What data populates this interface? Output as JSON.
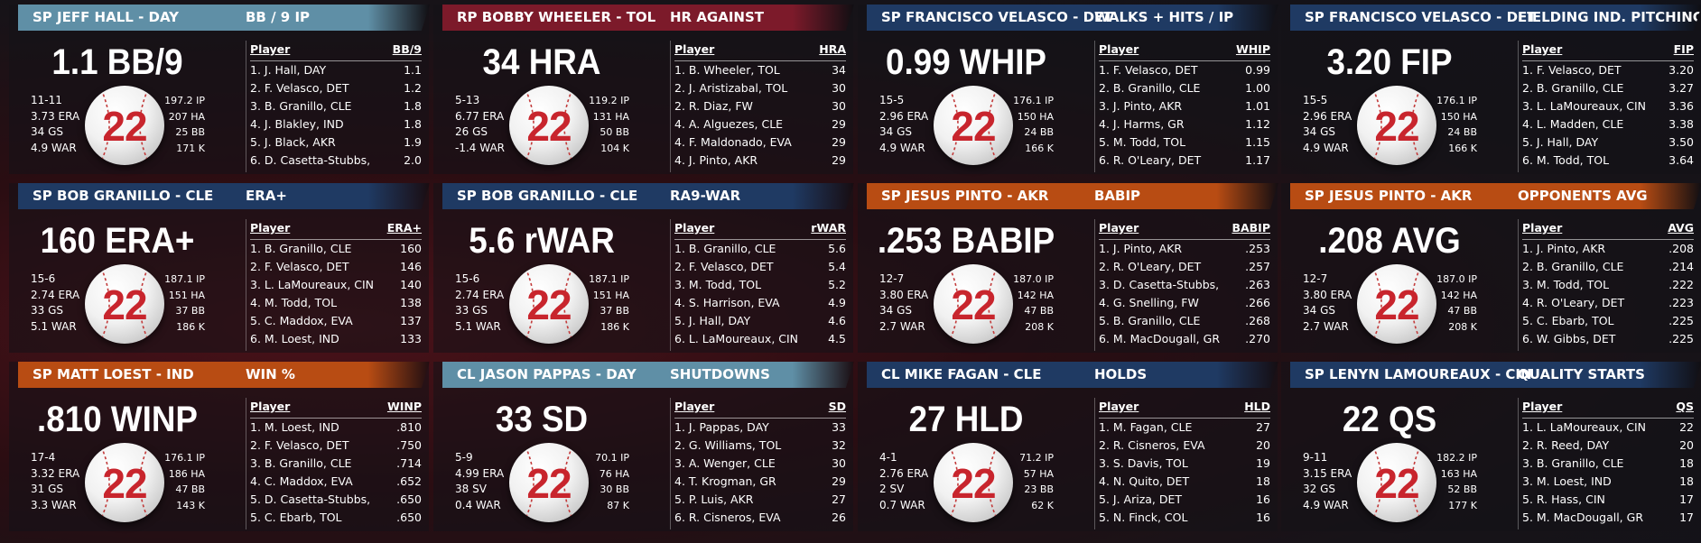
{
  "ball_number": "22",
  "colors": {
    "teal": "#5f8fa6",
    "red": "#7c1a2a",
    "navy": "#1f3a63",
    "orange": "#b84c13"
  },
  "cards": [
    {
      "header_color": "teal",
      "title": "SP JEFF HALL - DAY",
      "category": "BB / 9 IP",
      "big": "1.1 BB/9",
      "rec": [
        "11-11",
        "3.73 ERA",
        "34 GS",
        "4.9 WAR"
      ],
      "aux": [
        "197.2 IP",
        "207 HA",
        "25 BB",
        "171 K"
      ],
      "col_player": "Player",
      "col_stat": "BB/9",
      "rows": [
        [
          "1. J. Hall, DAY",
          "1.1"
        ],
        [
          "2. F. Velasco, DET",
          "1.2"
        ],
        [
          "3. B. Granillo, CLE",
          "1.8"
        ],
        [
          "4. J. Blakley, IND",
          "1.8"
        ],
        [
          "5. J. Black, AKR",
          "1.9"
        ],
        [
          "6. D. Casetta-Stubbs,",
          "2.0"
        ]
      ]
    },
    {
      "header_color": "red",
      "title": "RP BOBBY WHEELER - TOL",
      "category": "HR AGAINST",
      "big": "34 HRA",
      "rec": [
        "5-13",
        "6.77 ERA",
        "26 GS",
        "-1.4 WAR"
      ],
      "aux": [
        "119.2 IP",
        "131 HA",
        "50 BB",
        "104 K"
      ],
      "col_player": "Player",
      "col_stat": "HRA",
      "rows": [
        [
          "1. B. Wheeler, TOL",
          "34"
        ],
        [
          "2. J. Aristizabal, TOL",
          "30"
        ],
        [
          "2. R. Diaz, FW",
          "30"
        ],
        [
          "4. A. Alguezes, CLE",
          "29"
        ],
        [
          "4. F. Maldonado, EVA",
          "29"
        ],
        [
          "4. J. Pinto, AKR",
          "29"
        ]
      ]
    },
    {
      "header_color": "navy",
      "title": "SP FRANCISCO VELASCO - DET",
      "category": "WALKS + HITS / IP",
      "big": "0.99 WHIP",
      "rec": [
        "15-5",
        "2.96 ERA",
        "34 GS",
        "4.9 WAR"
      ],
      "aux": [
        "176.1 IP",
        "150 HA",
        "24 BB",
        "166 K"
      ],
      "col_player": "Player",
      "col_stat": "WHIP",
      "rows": [
        [
          "1. F. Velasco, DET",
          "0.99"
        ],
        [
          "2. B. Granillo, CLE",
          "1.00"
        ],
        [
          "3. J. Pinto, AKR",
          "1.01"
        ],
        [
          "4. J. Harms, GR",
          "1.12"
        ],
        [
          "5. M. Todd, TOL",
          "1.15"
        ],
        [
          "6. R. O'Leary, DET",
          "1.17"
        ]
      ]
    },
    {
      "header_color": "navy",
      "title": "SP FRANCISCO VELASCO - DET",
      "category": "FIELDING IND. PITCHING",
      "big": "3.20 FIP",
      "rec": [
        "15-5",
        "2.96 ERA",
        "34 GS",
        "4.9 WAR"
      ],
      "aux": [
        "176.1 IP",
        "150 HA",
        "24 BB",
        "166 K"
      ],
      "col_player": "Player",
      "col_stat": "FIP",
      "rows": [
        [
          "1. F. Velasco, DET",
          "3.20"
        ],
        [
          "2. B. Granillo, CLE",
          "3.27"
        ],
        [
          "3. L. LaMoureaux, CIN",
          "3.36"
        ],
        [
          "4. L. Madden, CLE",
          "3.38"
        ],
        [
          "5. J. Hall, DAY",
          "3.50"
        ],
        [
          "6. M. Todd, TOL",
          "3.64"
        ]
      ]
    },
    {
      "header_color": "navy",
      "title": "SP BOB GRANILLO - CLE",
      "category": "ERA+",
      "big": "160 ERA+",
      "rec": [
        "15-6",
        "2.74 ERA",
        "33 GS",
        "5.1 WAR"
      ],
      "aux": [
        "187.1 IP",
        "151 HA",
        "37 BB",
        "186 K"
      ],
      "col_player": "Player",
      "col_stat": "ERA+",
      "rows": [
        [
          "1. B. Granillo, CLE",
          "160"
        ],
        [
          "2. F. Velasco, DET",
          "146"
        ],
        [
          "3. L. LaMoureaux, CIN",
          "140"
        ],
        [
          "4. M. Todd, TOL",
          "138"
        ],
        [
          "5. C. Maddox, EVA",
          "137"
        ],
        [
          "6. M. Loest, IND",
          "133"
        ]
      ]
    },
    {
      "header_color": "navy",
      "title": "SP BOB GRANILLO - CLE",
      "category": "RA9-WAR",
      "big": "5.6 rWAR",
      "rec": [
        "15-6",
        "2.74 ERA",
        "33 GS",
        "5.1 WAR"
      ],
      "aux": [
        "187.1 IP",
        "151 HA",
        "37 BB",
        "186 K"
      ],
      "col_player": "Player",
      "col_stat": "rWAR",
      "rows": [
        [
          "1. B. Granillo, CLE",
          "5.6"
        ],
        [
          "2. F. Velasco, DET",
          "5.4"
        ],
        [
          "3. M. Todd, TOL",
          "5.2"
        ],
        [
          "4. S. Harrison, EVA",
          "4.9"
        ],
        [
          "5. J. Hall, DAY",
          "4.6"
        ],
        [
          "6. L. LaMoureaux, CIN",
          "4.5"
        ]
      ]
    },
    {
      "header_color": "orange",
      "title": "SP JESUS PINTO - AKR",
      "category": "BABIP",
      "big": ".253 BABIP",
      "rec": [
        "12-7",
        "3.80 ERA",
        "34 GS",
        "2.7 WAR"
      ],
      "aux": [
        "187.0 IP",
        "142 HA",
        "47 BB",
        "208 K"
      ],
      "col_player": "Player",
      "col_stat": "BABIP",
      "rows": [
        [
          "1. J. Pinto, AKR",
          ".253"
        ],
        [
          "2. R. O'Leary, DET",
          ".257"
        ],
        [
          "3. D. Casetta-Stubbs,",
          ".263"
        ],
        [
          "4. G. Snelling, FW",
          ".266"
        ],
        [
          "5. B. Granillo, CLE",
          ".268"
        ],
        [
          "6. M. MacDougall, GR",
          ".270"
        ]
      ]
    },
    {
      "header_color": "orange",
      "title": "SP JESUS PINTO - AKR",
      "category": "OPPONENTS AVG",
      "big": ".208 AVG",
      "rec": [
        "12-7",
        "3.80 ERA",
        "34 GS",
        "2.7 WAR"
      ],
      "aux": [
        "187.0 IP",
        "142 HA",
        "47 BB",
        "208 K"
      ],
      "col_player": "Player",
      "col_stat": "AVG",
      "rows": [
        [
          "1. J. Pinto, AKR",
          ".208"
        ],
        [
          "2. B. Granillo, CLE",
          ".214"
        ],
        [
          "3. M. Todd, TOL",
          ".222"
        ],
        [
          "4. R. O'Leary, DET",
          ".223"
        ],
        [
          "5. C. Ebarb, TOL",
          ".225"
        ],
        [
          "6. W. Gibbs, DET",
          ".225"
        ]
      ]
    },
    {
      "header_color": "orange",
      "title": "SP MATT LOEST - IND",
      "category": "WIN %",
      "big": ".810 WINP",
      "rec": [
        "17-4",
        "3.32 ERA",
        "31 GS",
        "3.3 WAR"
      ],
      "aux": [
        "176.1 IP",
        "186 HA",
        "47 BB",
        "143 K"
      ],
      "col_player": "Player",
      "col_stat": "WINP",
      "rows": [
        [
          "1. M. Loest, IND",
          ".810"
        ],
        [
          "2. F. Velasco, DET",
          ".750"
        ],
        [
          "3. B. Granillo, CLE",
          ".714"
        ],
        [
          "4. C. Maddox, EVA",
          ".652"
        ],
        [
          "5. D. Casetta-Stubbs,",
          ".650"
        ],
        [
          "5. C. Ebarb, TOL",
          ".650"
        ]
      ]
    },
    {
      "header_color": "teal",
      "title": "CL JASON PAPPAS - DAY",
      "category": "SHUTDOWNS",
      "big": "33 SD",
      "rec": [
        "5-9",
        "4.99 ERA",
        "38 SV",
        "0.4 WAR"
      ],
      "aux": [
        "70.1 IP",
        "76 HA",
        "30 BB",
        "87 K"
      ],
      "col_player": "Player",
      "col_stat": "SD",
      "rows": [
        [
          "1. J. Pappas, DAY",
          "33"
        ],
        [
          "2. G. Williams, TOL",
          "32"
        ],
        [
          "3. A. Wenger, CLE",
          "30"
        ],
        [
          "4. T. Krogman, GR",
          "29"
        ],
        [
          "5. P. Luis, AKR",
          "27"
        ],
        [
          "6. R. Cisneros, EVA",
          "26"
        ]
      ]
    },
    {
      "header_color": "navy",
      "title": "CL MIKE FAGAN - CLE",
      "category": "HOLDS",
      "big": "27 HLD",
      "rec": [
        "4-1",
        "2.76 ERA",
        "2 SV",
        "0.7 WAR"
      ],
      "aux": [
        "71.2 IP",
        "57 HA",
        "23 BB",
        "62 K"
      ],
      "col_player": "Player",
      "col_stat": "HLD",
      "rows": [
        [
          "1. M. Fagan, CLE",
          "27"
        ],
        [
          "2. R. Cisneros, EVA",
          "20"
        ],
        [
          "3. S. Davis, TOL",
          "19"
        ],
        [
          "4. N. Quito, DET",
          "18"
        ],
        [
          "5. J. Ariza, DET",
          "16"
        ],
        [
          "5. N. Finck, COL",
          "16"
        ]
      ]
    },
    {
      "header_color": "navy",
      "title": "SP LENYN LAMOUREAUX - CIN",
      "category": "QUALITY STARTS",
      "big": "22 QS",
      "rec": [
        "9-11",
        "3.15 ERA",
        "32 GS",
        "4.9 WAR"
      ],
      "aux": [
        "182.2 IP",
        "163 HA",
        "52 BB",
        "177 K"
      ],
      "col_player": "Player",
      "col_stat": "QS",
      "rows": [
        [
          "1. L. LaMoureaux, CIN",
          "22"
        ],
        [
          "2. R. Reed, DAY",
          "20"
        ],
        [
          "3. B. Granillo, CLE",
          "18"
        ],
        [
          "3. M. Loest, IND",
          "18"
        ],
        [
          "5. R. Hass, CIN",
          "17"
        ],
        [
          "5. M. MacDougall, GR",
          "17"
        ]
      ]
    }
  ]
}
